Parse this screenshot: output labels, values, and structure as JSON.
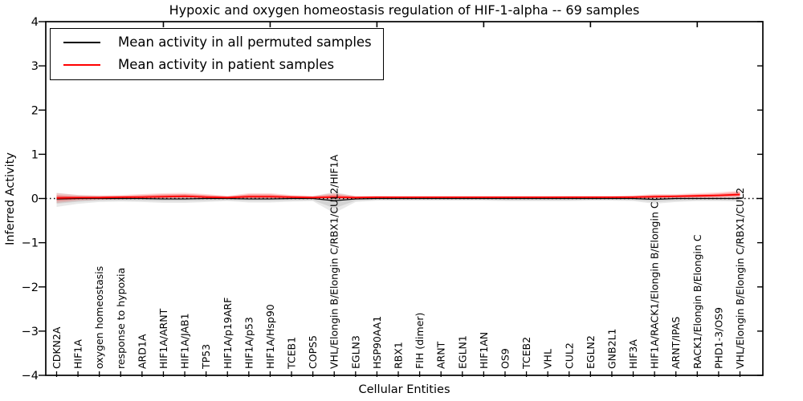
{
  "figure": {
    "background": "#ffffff"
  },
  "chart_data": {
    "type": "line",
    "title": "Hypoxic and oxygen homeostasis regulation of HIF-1-alpha -- 69 samples",
    "xlabel": "Cellular Entities",
    "ylabel": "Inferred Activity",
    "ylim": [
      -4,
      4
    ],
    "yticks": [
      -4,
      -3,
      -2,
      -1,
      0,
      1,
      2,
      3,
      4
    ],
    "grid": false,
    "zero_line": {
      "y": 0,
      "style": "dotted",
      "color": "#000000"
    },
    "legend": {
      "position": "upper left",
      "entries": [
        {
          "label": "Mean activity in all permuted samples",
          "color": "#000000"
        },
        {
          "label": "Mean activity in patient samples",
          "color": "#ff0000"
        }
      ]
    },
    "categories": [
      "CDKN2A",
      "HIF1A",
      "oxygen homeostasis",
      "response to hypoxia",
      "ARD1A",
      "HIF1A/ARNT",
      "HIF1A/JAB1",
      "TP53",
      "HIF1A/p19ARF",
      "HIF1A/p53",
      "HIF1A/Hsp90",
      "TCEB1",
      "COPS5",
      "VHL/Elongin B/Elongin C/RBX1/CUL2/HIF1A",
      "EGLN3",
      "HSP90AA1",
      "RBX1",
      "FIH (dimer)",
      "ARNT",
      "EGLN1",
      "HIF1AN",
      "OS9",
      "TCEB2",
      "VHL",
      "CUL2",
      "EGLN2",
      "GNB2L1",
      "HIF3A",
      "HIF1A/RACK1/Elongin B/Elongin C",
      "ARNT/IPAS",
      "RACK1/Elongin B/Elongin C",
      "PHD1-3/OS9",
      "VHL/Elongin B/Elongin C/RBX1/CUL2"
    ],
    "series": [
      {
        "name": "Mean activity in all permuted samples",
        "color": "#000000",
        "values": [
          -0.01,
          0,
          0,
          0,
          0,
          -0.01,
          -0.01,
          0,
          0,
          -0.01,
          -0.01,
          0,
          0,
          -0.05,
          -0.01,
          0,
          0,
          0,
          0,
          0,
          0,
          0,
          0,
          0,
          0,
          0,
          0,
          0,
          -0.02,
          0,
          0,
          0,
          0
        ]
      },
      {
        "name": "Mean activity in patient samples",
        "color": "#ff0000",
        "values": [
          0.01,
          0.02,
          0.02,
          0.03,
          0.03,
          0.04,
          0.05,
          0.03,
          0.02,
          0.04,
          0.04,
          0.03,
          0.02,
          0.03,
          0.02,
          0.03,
          0.03,
          0.03,
          0.03,
          0.03,
          0.03,
          0.03,
          0.03,
          0.03,
          0.03,
          0.03,
          0.03,
          0.03,
          0.04,
          0.05,
          0.06,
          0.07,
          0.09
        ]
      }
    ],
    "bands": [
      {
        "name": "permuted-samples-spread",
        "color": "#999999",
        "lower": [
          -0.19,
          -0.12,
          -0.08,
          -0.07,
          -0.08,
          -0.1,
          -0.1,
          -0.08,
          -0.06,
          -0.09,
          -0.09,
          -0.07,
          -0.06,
          -0.33,
          -0.08,
          -0.05,
          -0.05,
          -0.05,
          -0.05,
          -0.05,
          -0.05,
          -0.06,
          -0.06,
          -0.06,
          -0.06,
          -0.05,
          -0.05,
          -0.06,
          -0.12,
          -0.08,
          -0.06,
          -0.06,
          -0.07
        ],
        "upper": [
          0.13,
          0.08,
          0.06,
          0.05,
          0.06,
          0.07,
          0.08,
          0.06,
          0.05,
          0.07,
          0.07,
          0.05,
          0.05,
          0.15,
          0.05,
          0.04,
          0.04,
          0.04,
          0.04,
          0.04,
          0.04,
          0.04,
          0.04,
          0.04,
          0.04,
          0.04,
          0.04,
          0.05,
          0.06,
          0.05,
          0.05,
          0.05,
          0.06
        ]
      },
      {
        "name": "patient-samples-spread",
        "color": "#ff0000",
        "lower": [
          -0.1,
          -0.05,
          -0.03,
          -0.02,
          0,
          0,
          0,
          0,
          -0.01,
          0,
          0,
          0,
          -0.01,
          -0.02,
          -0.02,
          0,
          0,
          0,
          0,
          0,
          0,
          0,
          0,
          0,
          0,
          0,
          0,
          0,
          0,
          0,
          0,
          0.01,
          0.02
        ],
        "upper": [
          0.12,
          0.08,
          0.07,
          0.08,
          0.1,
          0.12,
          0.13,
          0.1,
          0.06,
          0.12,
          0.12,
          0.08,
          0.06,
          0.12,
          0.06,
          0.06,
          0.05,
          0.05,
          0.05,
          0.05,
          0.05,
          0.05,
          0.05,
          0.05,
          0.06,
          0.06,
          0.06,
          0.07,
          0.1,
          0.1,
          0.12,
          0.14,
          0.18
        ]
      }
    ],
    "layout_hints": {
      "legend_position": "upper left",
      "x_tick_labels_rotation_deg": 90,
      "x_tick_labels_inside_axes": true,
      "top_axis_tick_indices": [
        5,
        10,
        15,
        20,
        25,
        30
      ]
    }
  }
}
